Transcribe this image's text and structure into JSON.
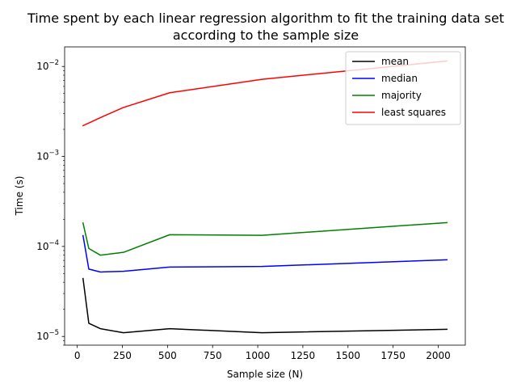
{
  "chart_data": {
    "type": "line",
    "title_line1": "Time spent by each linear regression algorithm to fit the training data set",
    "title_line2": "according to the sample size",
    "xlabel": "Sample size (N)",
    "ylabel": "Time (s)",
    "xlim": [
      -70,
      2150
    ],
    "ylim": [
      8e-06,
      0.0165
    ],
    "yscale": "log",
    "xticks": [
      0,
      250,
      500,
      750,
      1000,
      1250,
      1500,
      1750,
      2000
    ],
    "yticks": [
      {
        "value": 1e-05,
        "base": "10",
        "exp": "−5"
      },
      {
        "value": 0.0001,
        "base": "10",
        "exp": "−4"
      },
      {
        "value": 0.001,
        "base": "10",
        "exp": "−3"
      },
      {
        "value": 0.01,
        "base": "10",
        "exp": "−2"
      }
    ],
    "grid": false,
    "legend_position": "top-right",
    "x": [
      32,
      64,
      128,
      256,
      512,
      1024,
      2048
    ],
    "series": [
      {
        "name": "mean",
        "color": "#000000",
        "values": [
          4.4e-05,
          1.4e-05,
          1.22e-05,
          1.1e-05,
          1.22e-05,
          1.1e-05,
          1.2e-05
        ]
      },
      {
        "name": "median",
        "color": "#0000ff",
        "values": [
          0.000132,
          5.6e-05,
          5.2e-05,
          5.3e-05,
          5.9e-05,
          6e-05,
          7.1e-05
        ]
      },
      {
        "name": "majority",
        "color": "#008000",
        "values": [
          0.000182,
          9.5e-05,
          8e-05,
          8.6e-05,
          0.000135,
          0.000133,
          0.000184
        ]
      },
      {
        "name": "least squares",
        "color": "#ff0000",
        "values": [
          0.0022,
          0.00235,
          0.0027,
          0.0035,
          0.0051,
          0.0072,
          0.0115
        ]
      }
    ]
  }
}
